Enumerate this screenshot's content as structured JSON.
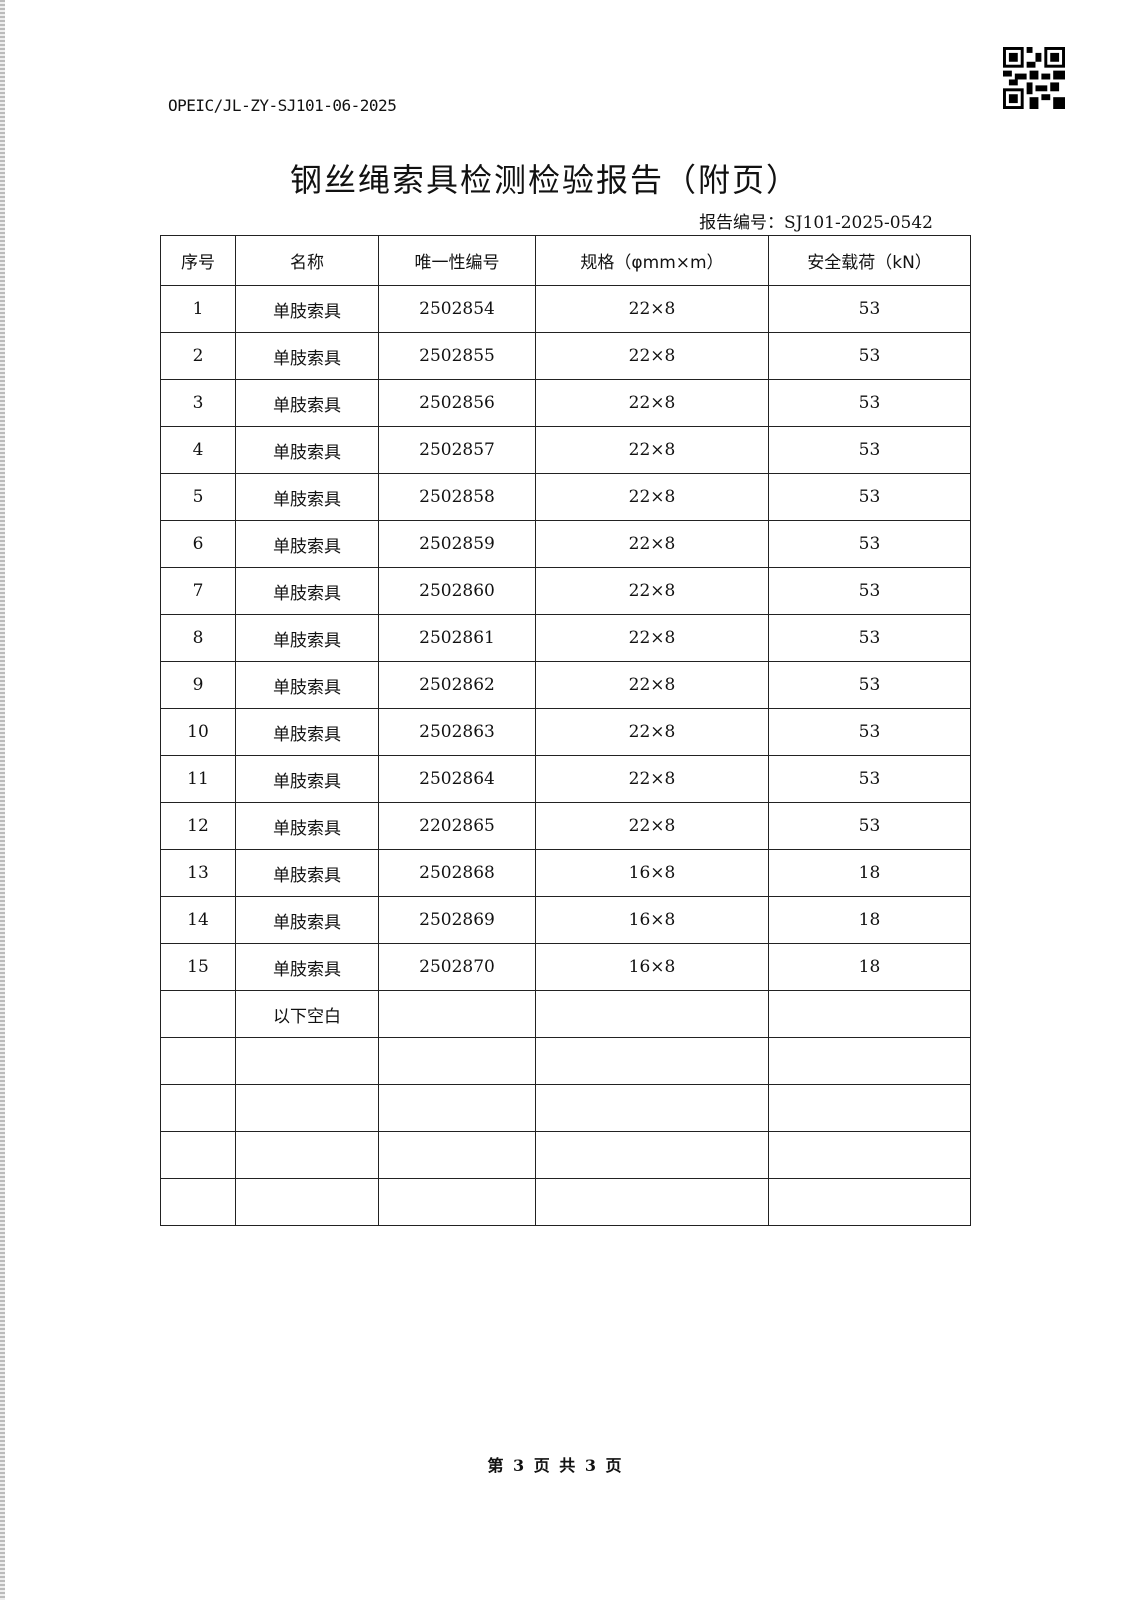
{
  "doc_code": "OPEIC/JL-ZY-SJ101-06-2025",
  "title": "钢丝绳索具检测检验报告（附页）",
  "report_no": "报告编号：SJ101-2025-0542",
  "table": {
    "headers": [
      "序号",
      "名称",
      "唯一性编号",
      "规格（φmm×m）",
      "安全载荷（kN）"
    ],
    "rows": [
      [
        "1",
        "单肢索具",
        "2502854",
        "22×8",
        "53"
      ],
      [
        "2",
        "单肢索具",
        "2502855",
        "22×8",
        "53"
      ],
      [
        "3",
        "单肢索具",
        "2502856",
        "22×8",
        "53"
      ],
      [
        "4",
        "单肢索具",
        "2502857",
        "22×8",
        "53"
      ],
      [
        "5",
        "单肢索具",
        "2502858",
        "22×8",
        "53"
      ],
      [
        "6",
        "单肢索具",
        "2502859",
        "22×8",
        "53"
      ],
      [
        "7",
        "单肢索具",
        "2502860",
        "22×8",
        "53"
      ],
      [
        "8",
        "单肢索具",
        "2502861",
        "22×8",
        "53"
      ],
      [
        "9",
        "单肢索具",
        "2502862",
        "22×8",
        "53"
      ],
      [
        "10",
        "单肢索具",
        "2502863",
        "22×8",
        "53"
      ],
      [
        "11",
        "单肢索具",
        "2502864",
        "22×8",
        "53"
      ],
      [
        "12",
        "单肢索具",
        "2202865",
        "22×8",
        "53"
      ],
      [
        "13",
        "单肢索具",
        "2502868",
        "16×8",
        "18"
      ],
      [
        "14",
        "单肢索具",
        "2502869",
        "16×8",
        "18"
      ],
      [
        "15",
        "单肢索具",
        "2502870",
        "16×8",
        "18"
      ],
      [
        "",
        "以下空白",
        "",
        "",
        ""
      ],
      [
        "",
        "",
        "",
        "",
        ""
      ],
      [
        "",
        "",
        "",
        "",
        ""
      ],
      [
        "",
        "",
        "",
        "",
        ""
      ],
      [
        "",
        "",
        "",
        "",
        ""
      ]
    ]
  },
  "footer": "第 3 页 共 3 页",
  "qr_icon": "qr-code-icon"
}
